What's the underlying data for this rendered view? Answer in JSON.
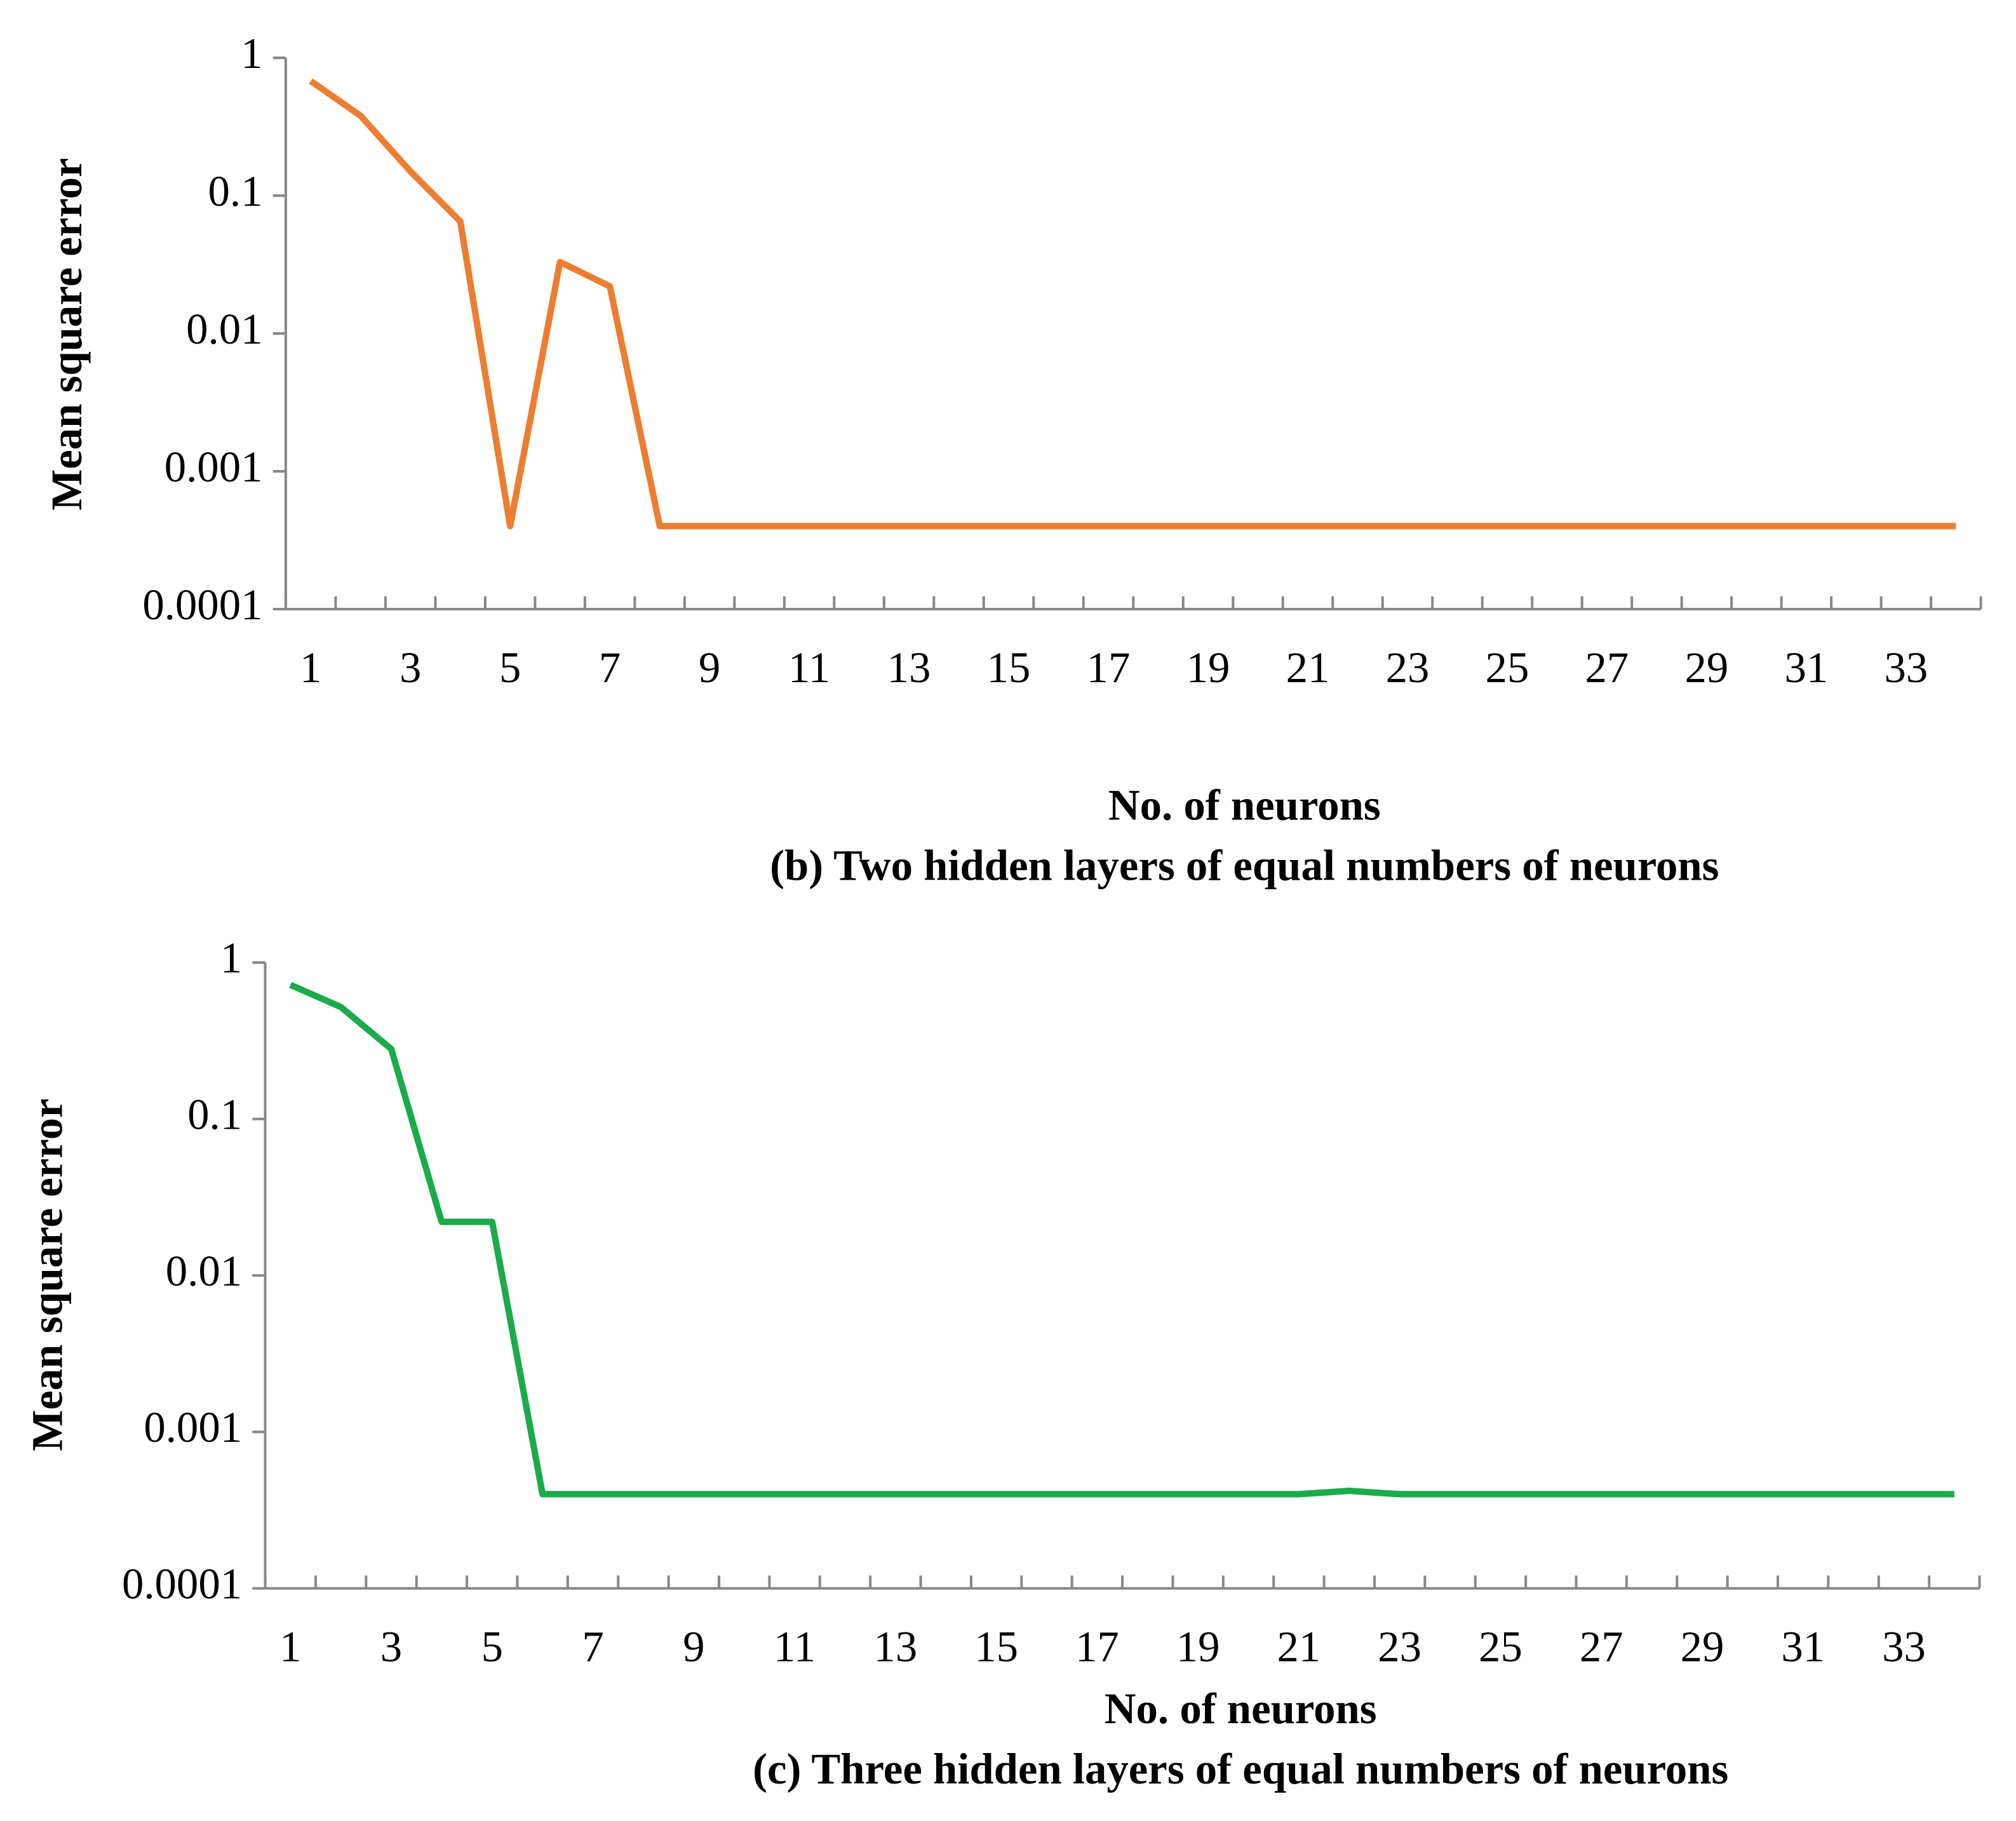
{
  "chart_data": [
    {
      "type": "line",
      "log_y": true,
      "x_label": "No. of neurons",
      "caption": "(b) Two hidden layers of equal numbers of neurons",
      "y_label": "Mean square error",
      "categories": [
        1,
        null,
        3,
        null,
        5,
        null,
        7,
        null,
        9,
        null,
        11,
        null,
        13,
        null,
        15,
        null,
        17,
        null,
        19,
        null,
        21,
        null,
        23,
        null,
        25,
        null,
        27,
        null,
        29,
        null,
        31,
        null,
        33,
        null
      ],
      "ylim": [
        0.0001,
        1
      ],
      "yticks": [
        0.0001,
        0.001,
        0.01,
        0.1,
        1
      ],
      "series": [
        {
          "color": "#ed7d31",
          "values": [
            0.68,
            0.38,
            0.15,
            0.065,
            0.0004,
            0.033,
            0.022,
            0.0004,
            0.0004,
            0.0004,
            0.0004,
            0.0004,
            0.0004,
            0.0004,
            0.0004,
            0.0004,
            0.0004,
            0.0004,
            0.0004,
            0.0004,
            0.0004,
            0.0004,
            0.0004,
            0.0004,
            0.0004,
            0.0004,
            0.0004,
            0.0004,
            0.0004,
            0.0004,
            0.0004,
            0.0004,
            0.0004,
            0.0004
          ]
        }
      ]
    },
    {
      "type": "line",
      "log_y": true,
      "x_label": "No. of neurons",
      "caption": "(c) Three hidden layers of equal numbers of neurons",
      "y_label": "Mean square error",
      "categories": [
        1,
        null,
        3,
        null,
        5,
        null,
        7,
        null,
        9,
        null,
        11,
        null,
        13,
        null,
        15,
        null,
        17,
        null,
        19,
        null,
        21,
        null,
        23,
        null,
        25,
        null,
        27,
        null,
        29,
        null,
        31,
        null,
        33,
        null
      ],
      "ylim": [
        0.0001,
        1
      ],
      "yticks": [
        0.0001,
        0.001,
        0.01,
        0.1,
        1
      ],
      "series": [
        {
          "color": "#1aab4b",
          "values": [
            0.72,
            0.52,
            0.28,
            0.022,
            0.022,
            0.0004,
            0.0004,
            0.0004,
            0.0004,
            0.0004,
            0.0004,
            0.0004,
            0.0004,
            0.0004,
            0.0004,
            0.0004,
            0.0004,
            0.0004,
            0.0004,
            0.0004,
            0.0004,
            0.00042,
            0.0004,
            0.0004,
            0.0004,
            0.0004,
            0.0004,
            0.0004,
            0.0004,
            0.0004,
            0.0004,
            0.0004,
            0.0004,
            0.0004
          ]
        }
      ]
    }
  ]
}
